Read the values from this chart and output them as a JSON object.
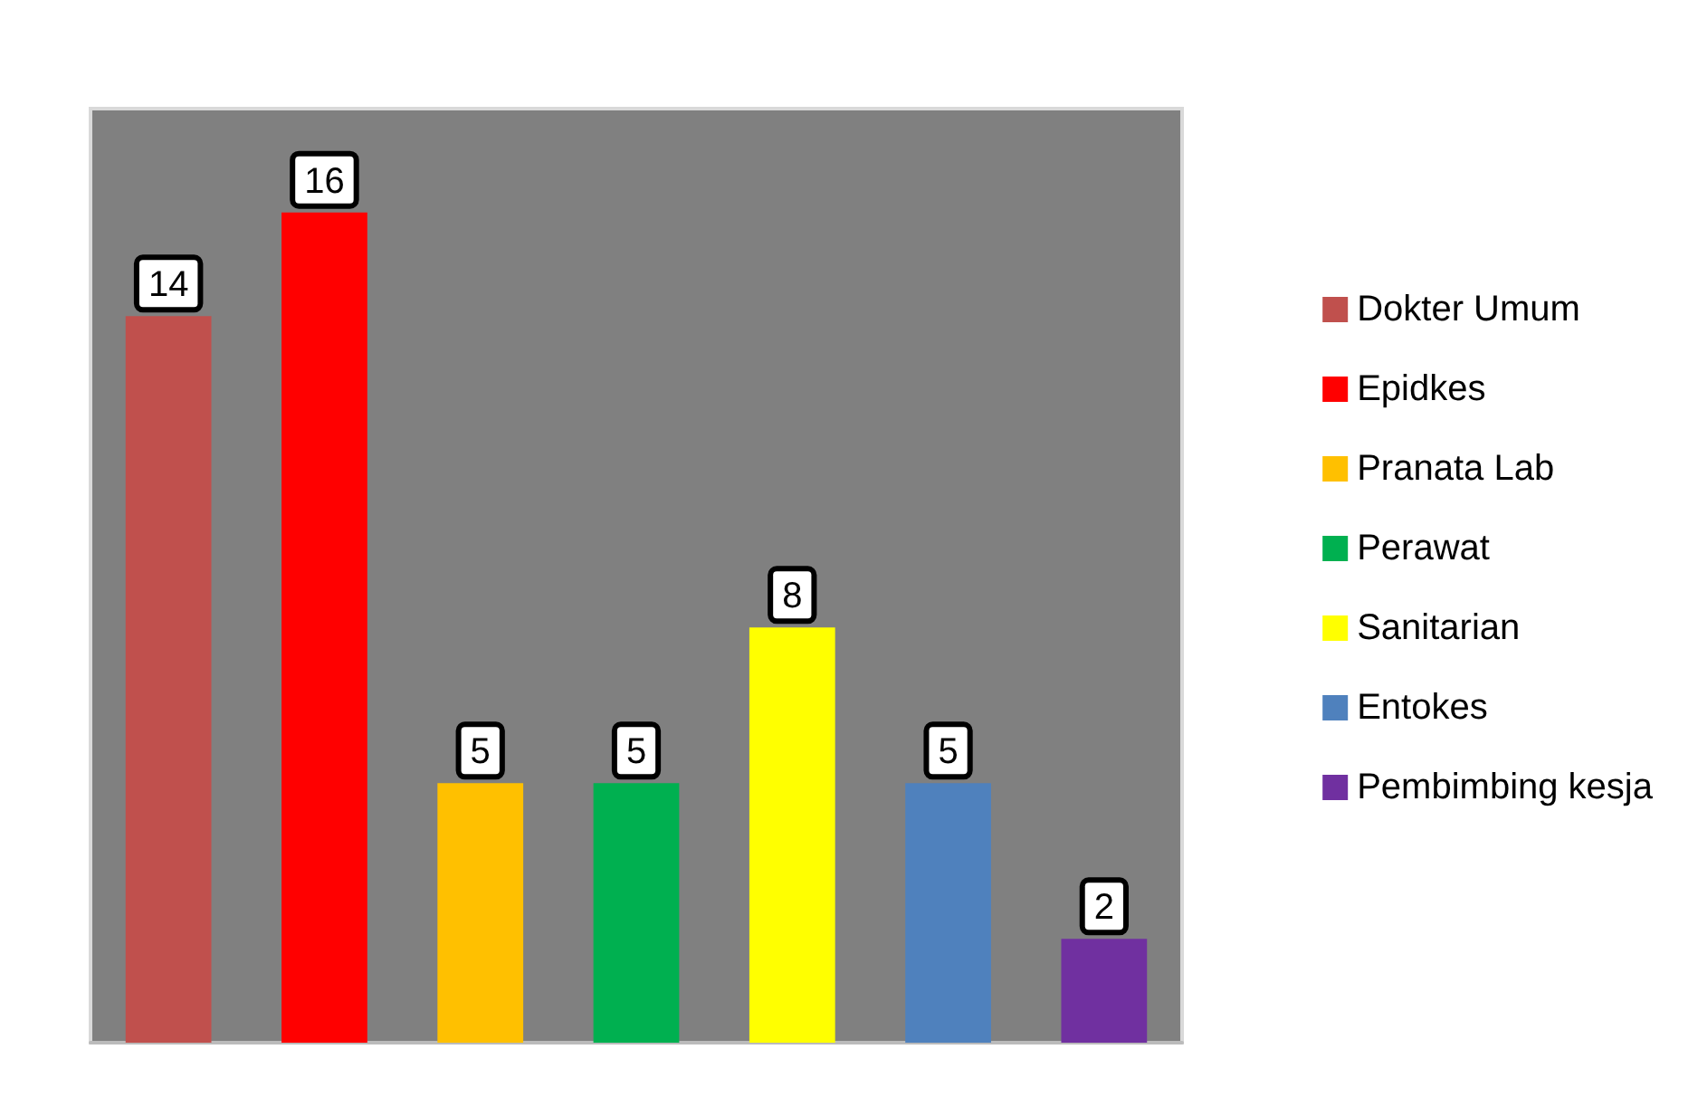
{
  "chart_data": {
    "type": "bar",
    "categories": [
      null,
      null,
      null,
      null,
      null,
      null,
      null
    ],
    "series": [
      {
        "name": "Dokter Umum",
        "color": "#c0504d",
        "values": [
          14,
          null,
          null,
          null,
          null,
          null,
          null
        ]
      },
      {
        "name": "Epidkes",
        "color": "#ff0000",
        "values": [
          null,
          16,
          null,
          null,
          null,
          null,
          null
        ]
      },
      {
        "name": "Pranata Lab",
        "color": "#ffc000",
        "values": [
          null,
          null,
          5,
          null,
          null,
          null,
          null
        ]
      },
      {
        "name": "Perawat",
        "color": "#00b050",
        "values": [
          null,
          null,
          null,
          5,
          null,
          null,
          null
        ]
      },
      {
        "name": "Sanitarian",
        "color": "#ffff00",
        "values": [
          null,
          null,
          null,
          null,
          8,
          null,
          null
        ]
      },
      {
        "name": "Entokes",
        "color": "#4f81bd",
        "values": [
          null,
          null,
          null,
          null,
          null,
          5,
          null
        ]
      },
      {
        "name": "Pembimbing kesja",
        "color": "#7030a0",
        "values": [
          null,
          null,
          null,
          null,
          null,
          null,
          2
        ]
      }
    ],
    "stacked": true,
    "data_labels": true,
    "legend": "right"
  }
}
